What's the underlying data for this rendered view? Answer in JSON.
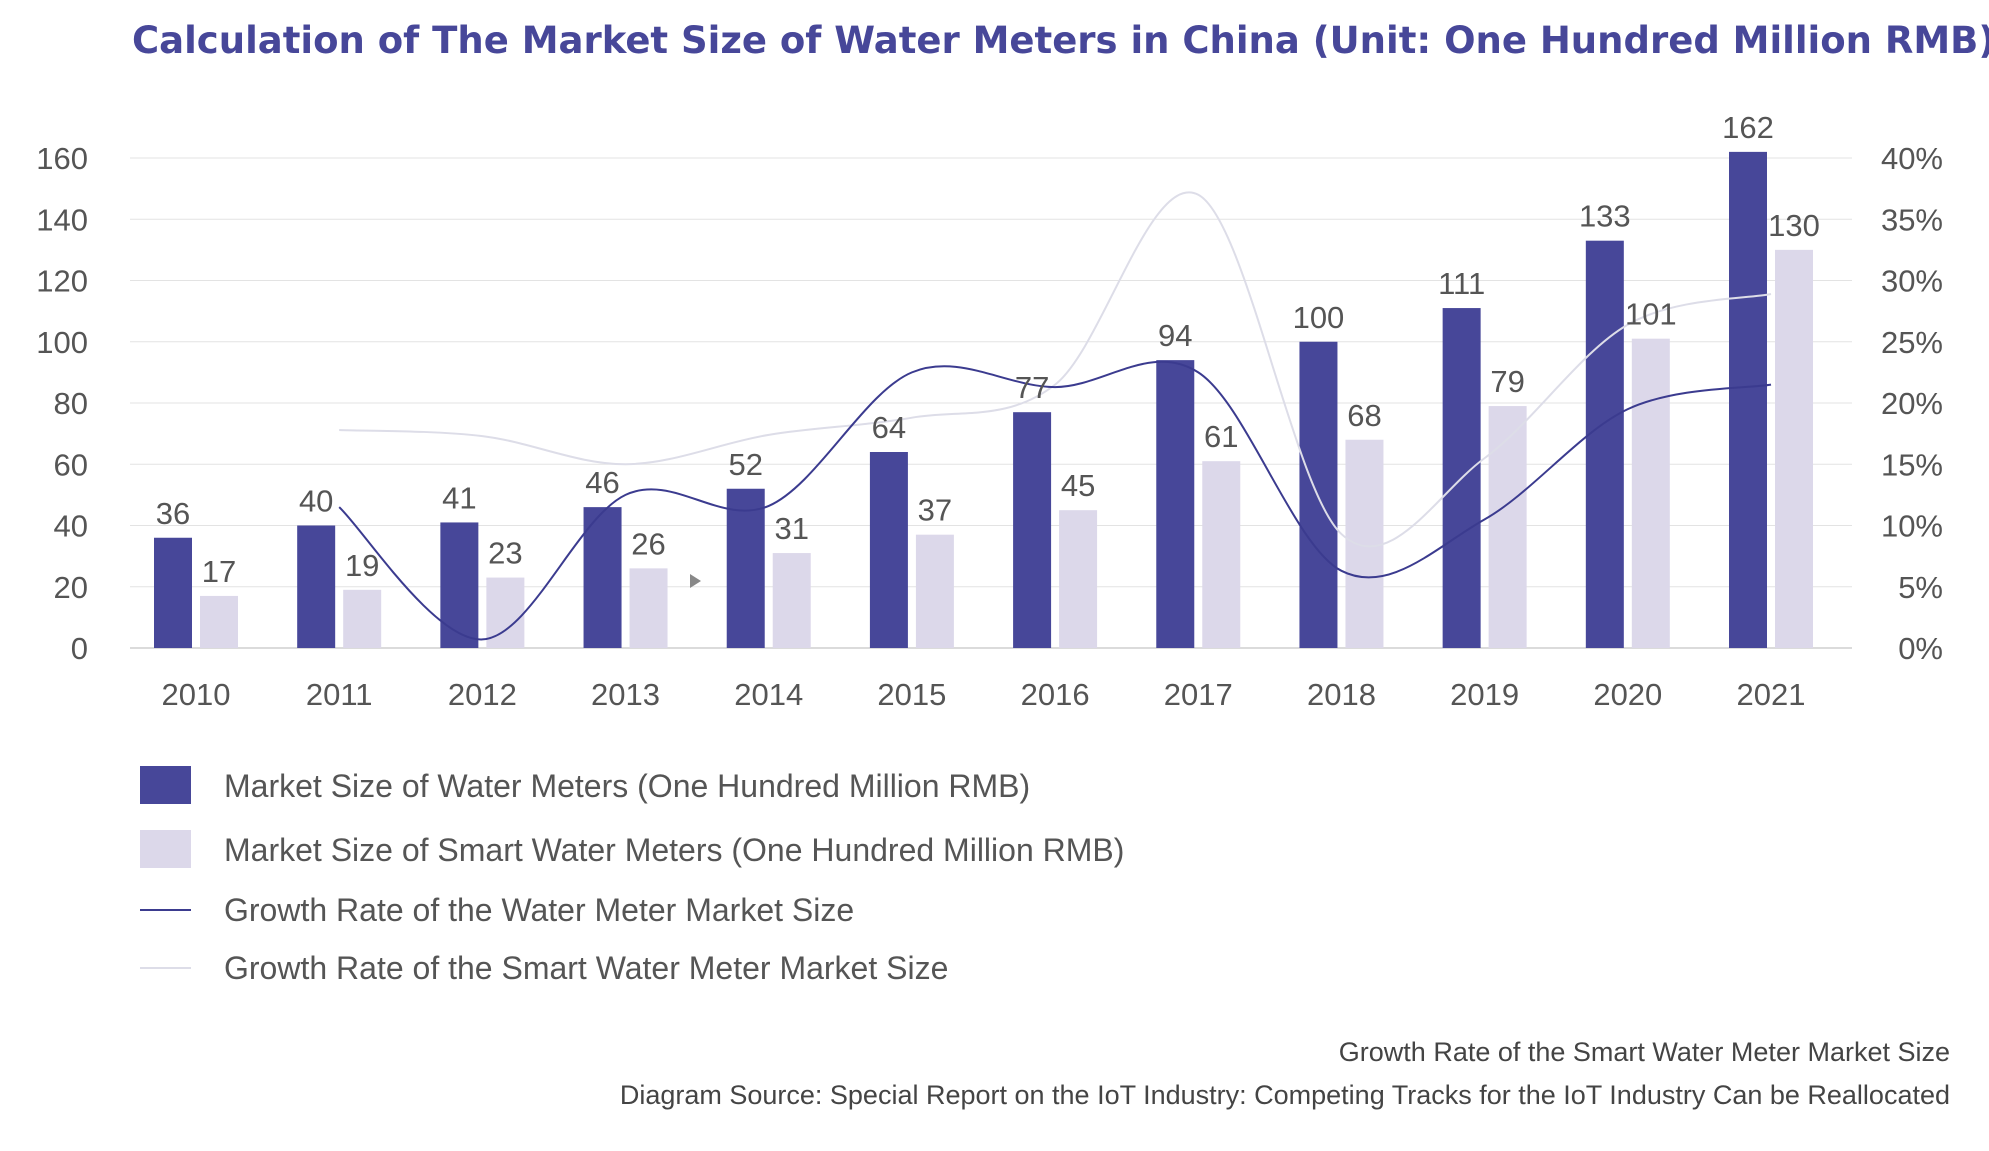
{
  "chart_data": {
    "type": "bar",
    "title": "Calculation of The Market Size of Water Meters in China (Unit: One Hundred Million RMB)",
    "categories": [
      "2010",
      "2011",
      "2012",
      "2013",
      "2014",
      "2015",
      "2016",
      "2017",
      "2018",
      "2019",
      "2020",
      "2021"
    ],
    "series": [
      {
        "name": "Market Size of Water Meters (One Hundred Million RMB)",
        "kind": "bar",
        "axis": "left",
        "color": "#474799",
        "values": [
          36,
          40,
          41,
          46,
          52,
          64,
          77,
          94,
          100,
          111,
          133,
          162
        ]
      },
      {
        "name": "Market Size of Smart Water Meters (One Hundred Million RMB)",
        "kind": "bar",
        "axis": "left",
        "color": "#dcd8ea",
        "values": [
          17,
          19,
          23,
          26,
          31,
          37,
          45,
          61,
          68,
          79,
          101,
          130
        ]
      },
      {
        "name": "Growth Rate of the Water Meter Market Size",
        "kind": "line",
        "axis": "right",
        "color": "#3b3b8f",
        "values": [
          null,
          11.5,
          0.7,
          12.5,
          11.6,
          22.5,
          21.3,
          22.5,
          6.3,
          10.5,
          19.5,
          21.5
        ]
      },
      {
        "name": "Growth Rate of the  Smart Water Meter Market Size",
        "kind": "line",
        "axis": "right",
        "color": "#dddde8",
        "values": [
          null,
          17.8,
          17.3,
          15.0,
          17.4,
          18.8,
          21.5,
          37.0,
          9.3,
          15.5,
          26.4,
          28.9
        ]
      }
    ],
    "left_axis": {
      "ticks": [
        "0",
        "20",
        "40",
        "60",
        "80",
        "100",
        "120",
        "140",
        "160"
      ],
      "ylim": [
        0,
        160
      ]
    },
    "right_axis": {
      "ticks": [
        "0%",
        "5%",
        "10%",
        "15%",
        "20%",
        "25%",
        "30%",
        "35%",
        "40%"
      ],
      "ylim": [
        0,
        40
      ]
    },
    "grid": true,
    "legend_position": "bottom-left",
    "footer_lines": [
      "Growth Rate of the  Smart Water Meter Market Size",
      "Diagram Source: Special Report on the IoT Industry: Competing Tracks for the IoT Industry Can be Reallocated"
    ]
  }
}
